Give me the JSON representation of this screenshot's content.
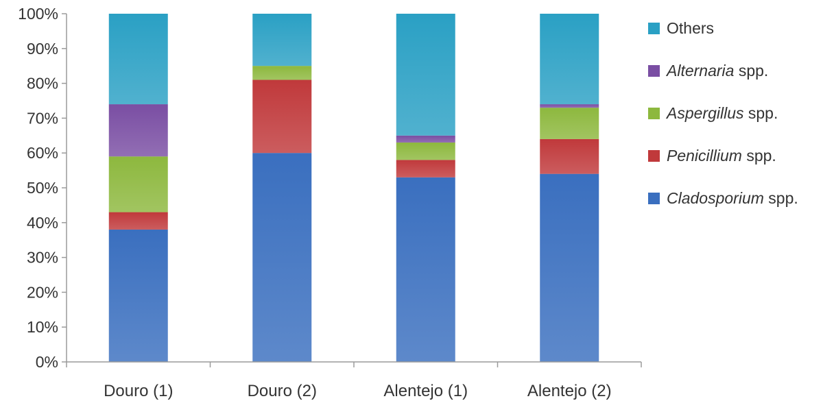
{
  "chart_data": {
    "type": "bar",
    "stacked": true,
    "categories": [
      "Douro (1)",
      "Douro (2)",
      "Alentejo (1)",
      "Alentejo (2)"
    ],
    "series": [
      {
        "name": "Cladosporium spp.",
        "name_italic": "Cladosporium",
        "name_suffix": " spp.",
        "color": "#3a6fbf",
        "values": [
          38,
          60,
          53,
          54
        ]
      },
      {
        "name": "Penicillium spp.",
        "name_italic": "Penicillium",
        "name_suffix": " spp.",
        "color": "#c0393b",
        "values": [
          5,
          21,
          5,
          10
        ]
      },
      {
        "name": "Aspergillus spp.",
        "name_italic": "Aspergillus",
        "name_suffix": " spp.",
        "color": "#8db83e",
        "values": [
          16,
          4,
          5,
          9
        ]
      },
      {
        "name": "Alternaria spp.",
        "name_italic": "Alternaria",
        "name_suffix": " spp.",
        "color": "#7a4ea3",
        "values": [
          15,
          0,
          2,
          1
        ]
      },
      {
        "name": "Others",
        "name_italic": "",
        "name_suffix": "Others",
        "color": "#2aa0c4",
        "values": [
          26,
          15,
          35,
          26
        ]
      }
    ],
    "ylim": [
      0,
      100
    ],
    "yticks": [
      "0%",
      "10%",
      "20%",
      "30%",
      "40%",
      "50%",
      "60%",
      "70%",
      "80%",
      "90%",
      "100%"
    ],
    "grid": false,
    "legend": "right"
  }
}
